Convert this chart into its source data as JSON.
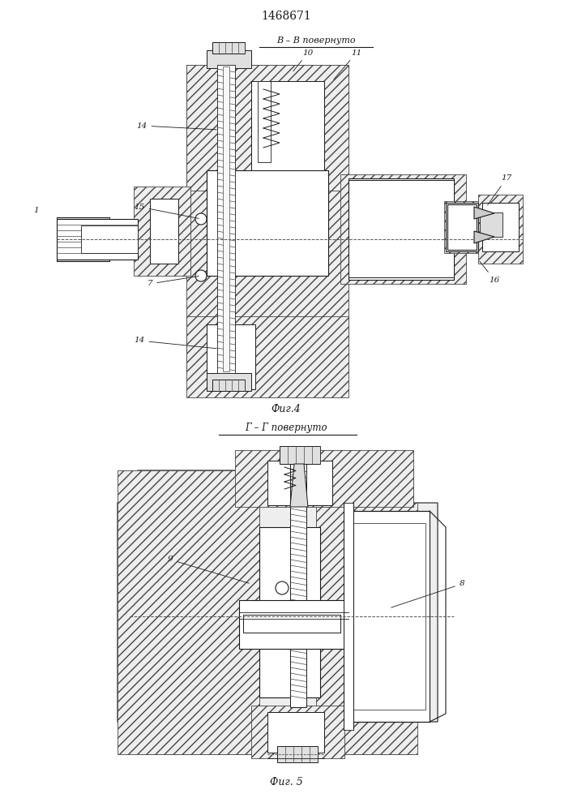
{
  "title": "1468671",
  "bg_color": "#ffffff",
  "line_color": "#1a1a1a",
  "fig1_label": "Фиг.4",
  "fig2_label": "Фиг. 5",
  "view1_label": "В – В повернуто",
  "view2_label": "Г – Г повернуто"
}
